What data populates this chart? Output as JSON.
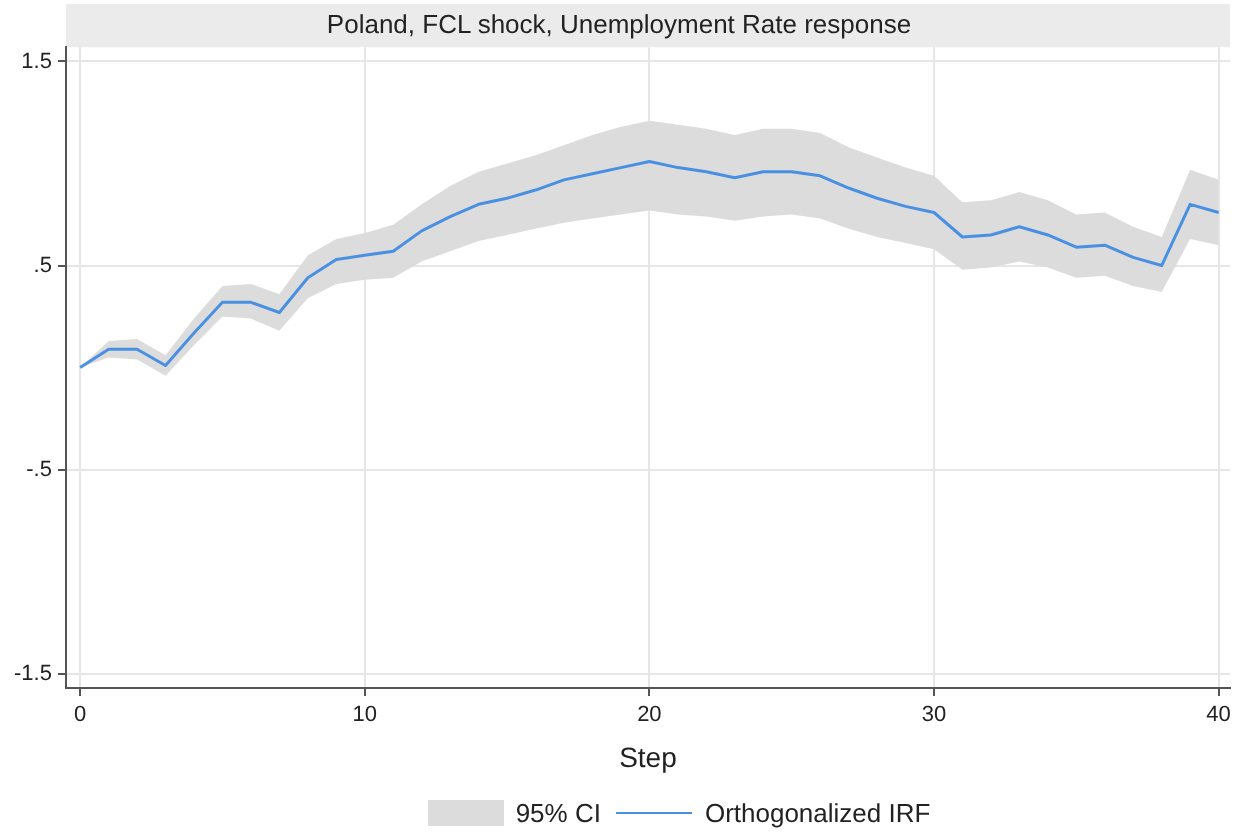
{
  "chart_data": {
    "type": "line",
    "title": "Poland, FCL shock, Unemployment Rate response",
    "xlabel": "Step",
    "x": [
      0,
      1,
      2,
      3,
      4,
      5,
      6,
      7,
      8,
      9,
      10,
      11,
      12,
      13,
      14,
      15,
      16,
      17,
      18,
      19,
      20,
      21,
      22,
      23,
      24,
      25,
      26,
      27,
      28,
      29,
      30,
      31,
      32,
      33,
      34,
      35,
      36,
      37,
      38,
      39,
      40
    ],
    "series": [
      {
        "name": "Orthogonalized IRF",
        "type": "line",
        "color": "#4a90e2",
        "values": [
          0,
          0.09,
          0.09,
          0.01,
          0.17,
          0.32,
          0.32,
          0.27,
          0.44,
          0.53,
          0.55,
          0.57,
          0.67,
          0.74,
          0.8,
          0.83,
          0.87,
          0.92,
          0.95,
          0.98,
          1.01,
          0.98,
          0.96,
          0.93,
          0.96,
          0.96,
          0.94,
          0.88,
          0.83,
          0.79,
          0.76,
          0.64,
          0.65,
          0.69,
          0.65,
          0.59,
          0.6,
          0.54,
          0.5,
          0.8,
          0.76
        ],
        "lower": [
          0,
          0.05,
          0.04,
          -0.04,
          0.11,
          0.25,
          0.24,
          0.18,
          0.34,
          0.41,
          0.43,
          0.44,
          0.52,
          0.57,
          0.62,
          0.65,
          0.68,
          0.71,
          0.73,
          0.75,
          0.77,
          0.75,
          0.74,
          0.72,
          0.74,
          0.75,
          0.73,
          0.68,
          0.64,
          0.61,
          0.58,
          0.48,
          0.49,
          0.52,
          0.49,
          0.44,
          0.45,
          0.4,
          0.37,
          0.63,
          0.6
        ],
        "upper": [
          0,
          0.13,
          0.14,
          0.06,
          0.24,
          0.4,
          0.41,
          0.36,
          0.55,
          0.63,
          0.66,
          0.7,
          0.8,
          0.89,
          0.96,
          1,
          1.04,
          1.09,
          1.14,
          1.18,
          1.21,
          1.19,
          1.17,
          1.14,
          1.17,
          1.17,
          1.15,
          1.08,
          1.03,
          0.98,
          0.94,
          0.81,
          0.82,
          0.86,
          0.82,
          0.75,
          0.76,
          0.69,
          0.64,
          0.97,
          0.92
        ]
      }
    ],
    "annotations": [
      "95% CI"
    ],
    "xlim": [
      -0.5,
      40.4
    ],
    "xticks": [
      0,
      10,
      20,
      30,
      40
    ],
    "ylim": [
      -1.57,
      1.57
    ],
    "yticks": [
      {
        "value": -1.5,
        "label": "-1.5"
      },
      {
        "value": -0.5,
        "label": "-.5"
      },
      {
        "value": 0.5,
        "label": ".5"
      },
      {
        "value": 1.5,
        "label": "1.5"
      }
    ],
    "grid": true,
    "legend": "bottom",
    "marker": "none",
    "line_style": "solid"
  }
}
